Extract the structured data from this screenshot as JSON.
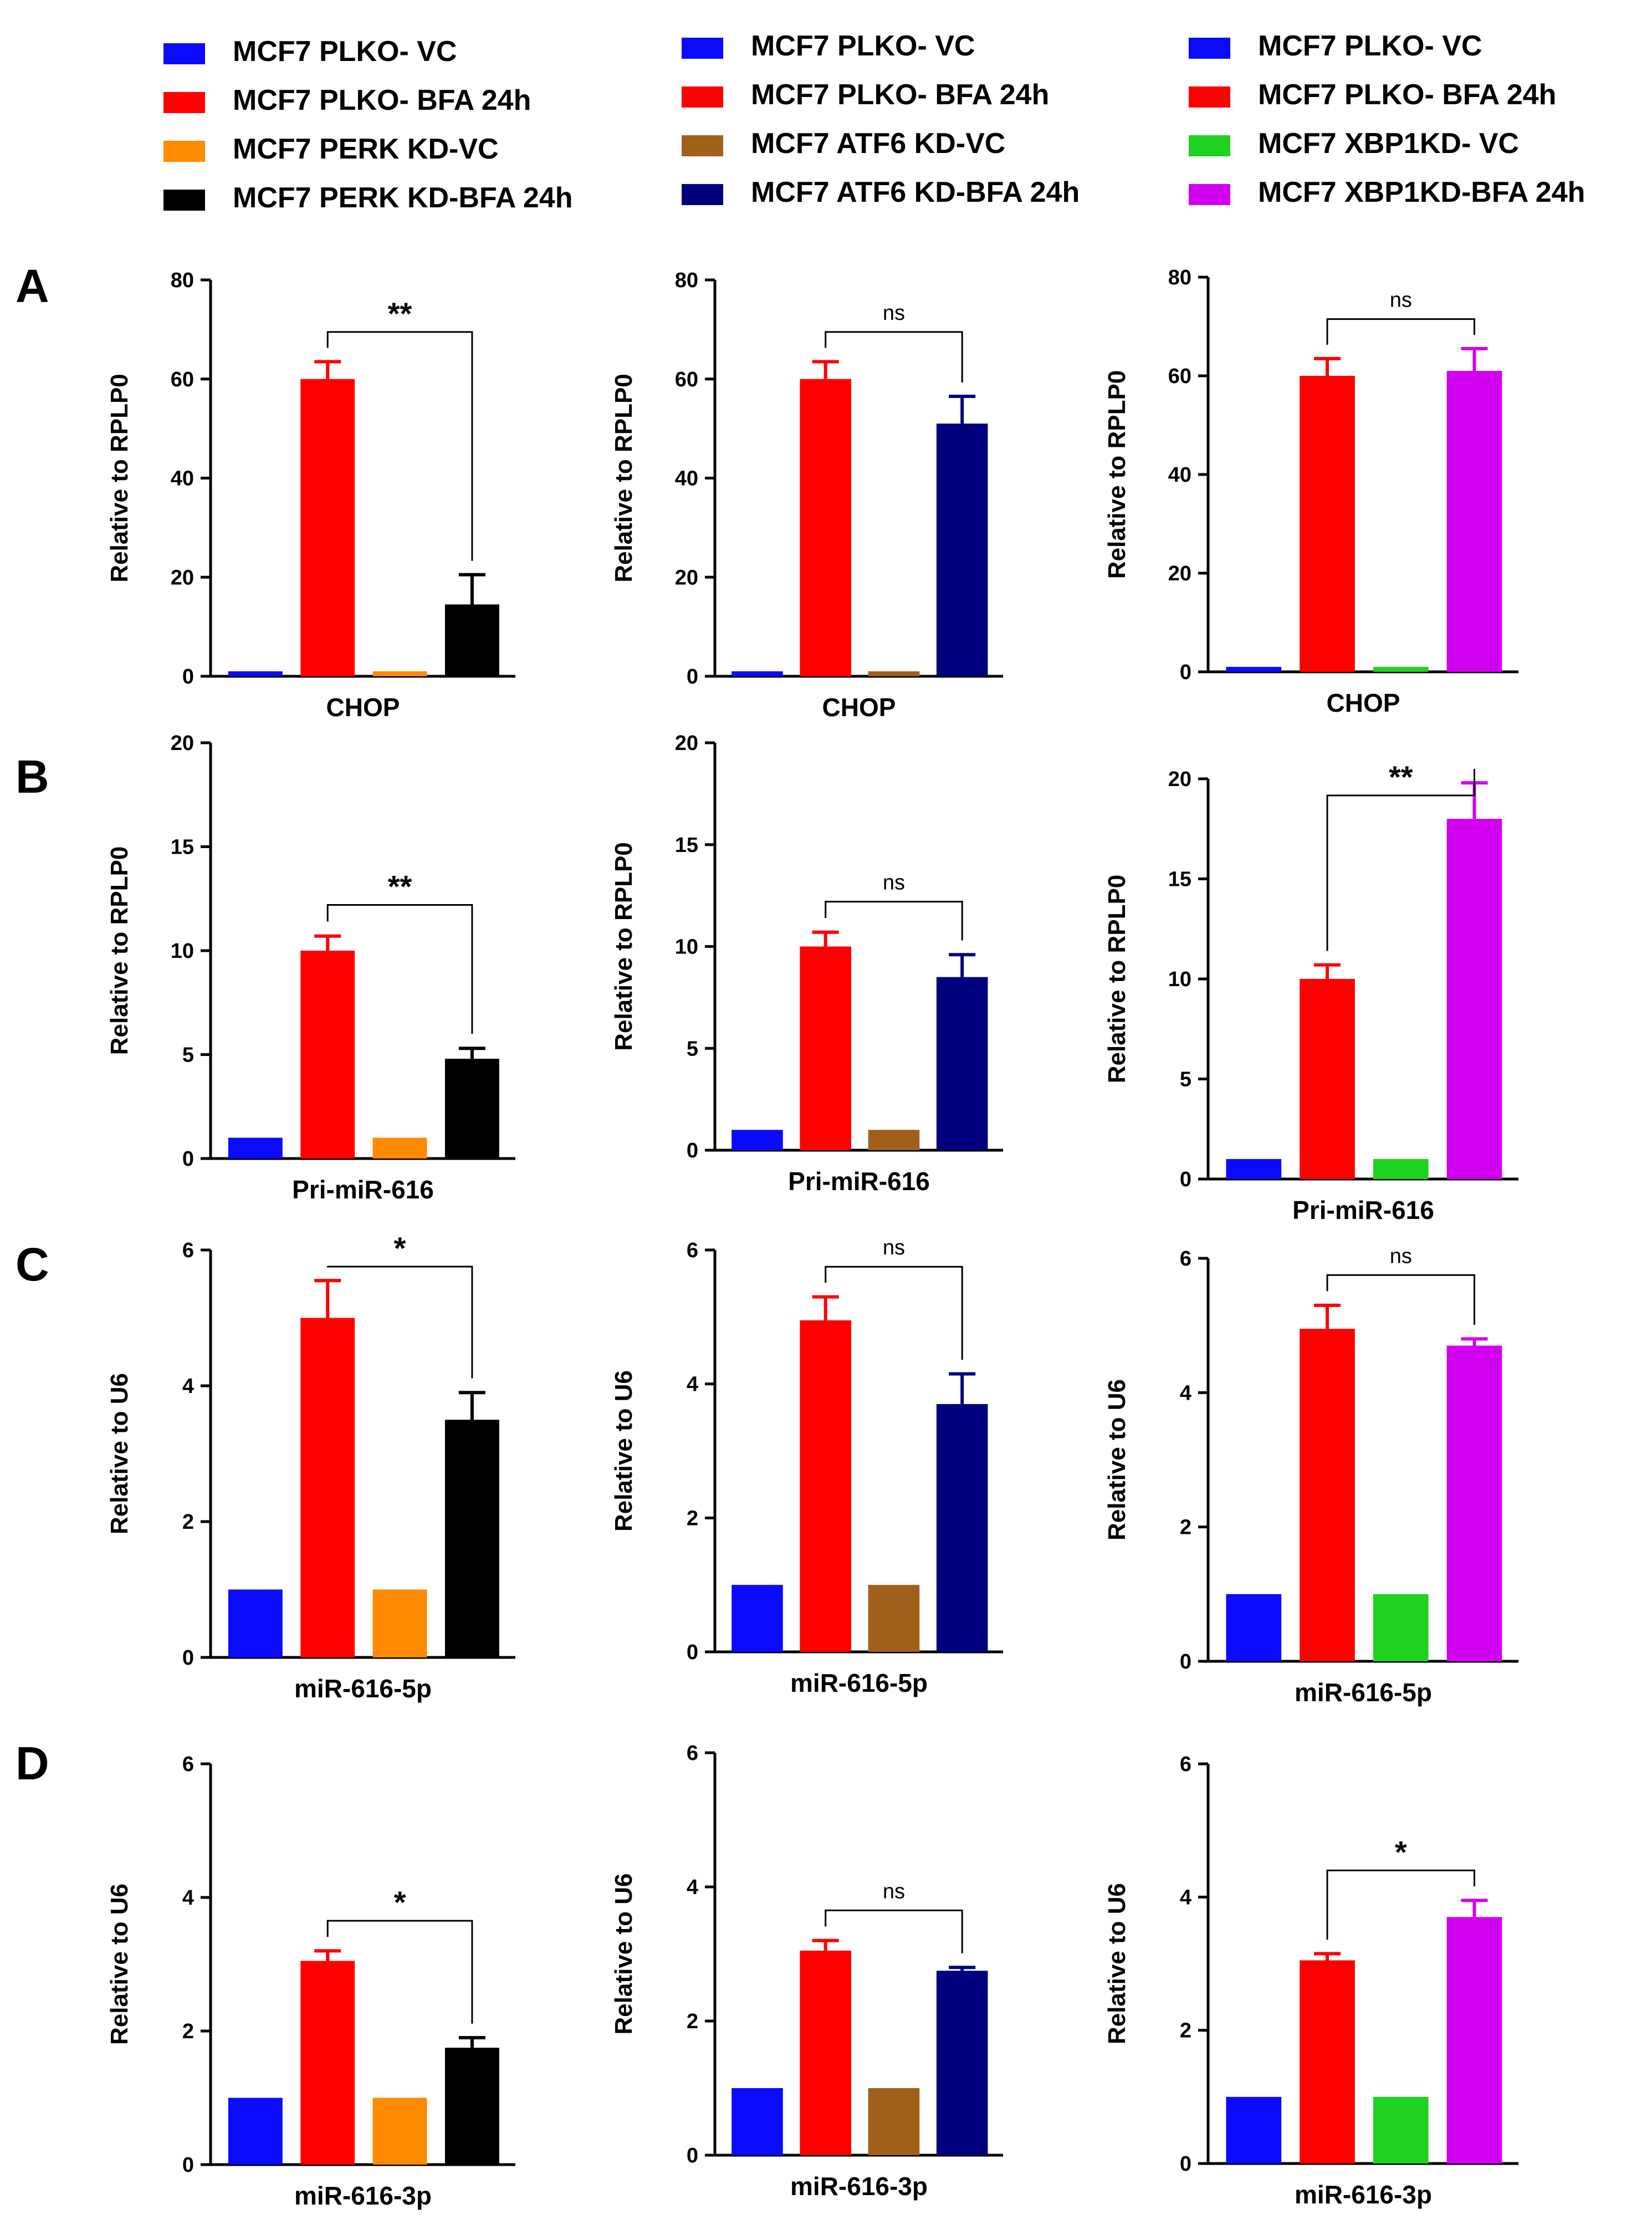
{
  "colors": {
    "PLKO_VC": "#0a0aff",
    "PLKO_BFA": "#ff0000",
    "PERK_VC": "#ff8a00",
    "PERK_BFA": "#000000",
    "ATF6_VC": "#a0601a",
    "ATF6_BFA": "#00007f",
    "XBP1_VC": "#1fd21f",
    "XBP1_BFA": "#d200f0"
  },
  "legend": [
    [
      {
        "label": "MCF7 PLKO- VC",
        "color": "#0a0aff"
      },
      {
        "label": "MCF7 PLKO- BFA 24h",
        "color": "#ff0000"
      },
      {
        "label": "MCF7 PERK KD-VC",
        "color": "#ff8a00"
      },
      {
        "label": "MCF7 PERK KD-BFA 24h",
        "color": "#000000"
      }
    ],
    [
      {
        "label": "MCF7 PLKO- VC",
        "color": "#0a0aff"
      },
      {
        "label": "MCF7 PLKO- BFA 24h",
        "color": "#ff0000"
      },
      {
        "label": "MCF7 ATF6 KD-VC",
        "color": "#a0601a"
      },
      {
        "label": "MCF7 ATF6 KD-BFA 24h",
        "color": "#00007f"
      }
    ],
    [
      {
        "label": "MCF7 PLKO- VC",
        "color": "#0a0aff"
      },
      {
        "label": "MCF7 PLKO- BFA 24h",
        "color": "#ff0000"
      },
      {
        "label": "MCF7 XBP1KD- VC",
        "color": "#1fd21f"
      },
      {
        "label": "MCF7 XBP1KD-BFA 24h",
        "color": "#d200f0"
      }
    ]
  ],
  "chart_data": [
    {
      "panel": "A",
      "type": "bar",
      "xlabel": "CHOP",
      "ylabel": "Relative to RPLP0",
      "ylim": [
        0,
        80
      ],
      "yticks": [
        0,
        20,
        40,
        60,
        80
      ],
      "values": [
        1,
        60,
        1,
        14.5
      ],
      "errors": [
        0,
        3.5,
        0,
        6
      ],
      "colors": [
        "#0a0aff",
        "#ff0000",
        "#ff8a00",
        "#000000"
      ],
      "significance": "**"
    },
    {
      "panel": "A2",
      "type": "bar",
      "xlabel": "CHOP",
      "ylabel": "Relative to RPLP0",
      "ylim": [
        0,
        80
      ],
      "yticks": [
        0,
        20,
        40,
        60,
        80
      ],
      "values": [
        1,
        60,
        1,
        51
      ],
      "errors": [
        0,
        3.5,
        0,
        5.5
      ],
      "colors": [
        "#0a0aff",
        "#ff0000",
        "#a0601a",
        "#00007f"
      ],
      "significance": "ns"
    },
    {
      "panel": "A3",
      "type": "bar",
      "xlabel": "CHOP",
      "ylabel": "Relative to RPLP0",
      "ylim": [
        0,
        80
      ],
      "yticks": [
        0,
        20,
        40,
        60,
        80
      ],
      "values": [
        1,
        60,
        1,
        61
      ],
      "errors": [
        0,
        3.5,
        0,
        4.5
      ],
      "colors": [
        "#0a0aff",
        "#ff0000",
        "#1fd21f",
        "#d200f0"
      ],
      "significance": "ns"
    },
    {
      "panel": "B",
      "type": "bar",
      "xlabel": "Pri-miR-616",
      "ylabel": "Relative to RPLP0",
      "ylim": [
        0,
        20
      ],
      "yticks": [
        0,
        5,
        10,
        15,
        20
      ],
      "values": [
        1,
        10,
        1,
        4.8
      ],
      "errors": [
        0,
        0.7,
        0,
        0.5
      ],
      "colors": [
        "#0a0aff",
        "#ff0000",
        "#ff8a00",
        "#000000"
      ],
      "significance": "**"
    },
    {
      "panel": "B2",
      "type": "bar",
      "xlabel": "Pri-miR-616",
      "ylabel": "Relative to RPLP0",
      "ylim": [
        0,
        20
      ],
      "yticks": [
        0,
        5,
        10,
        15,
        20
      ],
      "values": [
        1,
        10,
        1,
        8.5
      ],
      "errors": [
        0,
        0.7,
        0,
        1.1
      ],
      "colors": [
        "#0a0aff",
        "#ff0000",
        "#a0601a",
        "#00007f"
      ],
      "significance": "ns"
    },
    {
      "panel": "B3",
      "type": "bar",
      "xlabel": "Pri-miR-616",
      "ylabel": "Relative to RPLP0",
      "ylim": [
        0,
        20
      ],
      "yticks": [
        0,
        5,
        10,
        15,
        20
      ],
      "values": [
        1,
        10,
        1,
        18
      ],
      "errors": [
        0,
        0.7,
        0,
        1.8
      ],
      "colors": [
        "#0a0aff",
        "#ff0000",
        "#1fd21f",
        "#d200f0"
      ],
      "significance": "**"
    },
    {
      "panel": "C",
      "type": "bar",
      "xlabel": "miR-616-5p",
      "ylabel": "Relative to U6",
      "ylim": [
        0,
        6
      ],
      "yticks": [
        0,
        2,
        4,
        6
      ],
      "values": [
        1,
        5,
        1,
        3.5
      ],
      "errors": [
        0,
        0.55,
        0,
        0.4
      ],
      "colors": [
        "#0a0aff",
        "#ff0000",
        "#ff8a00",
        "#000000"
      ],
      "significance": "*"
    },
    {
      "panel": "C2",
      "type": "bar",
      "xlabel": "miR-616-5p",
      "ylabel": "Relative to U6",
      "ylim": [
        0,
        6
      ],
      "yticks": [
        0,
        2,
        4,
        6
      ],
      "values": [
        1,
        4.95,
        1,
        3.7
      ],
      "errors": [
        0,
        0.35,
        0,
        0.45
      ],
      "colors": [
        "#0a0aff",
        "#ff0000",
        "#a0601a",
        "#00007f"
      ],
      "significance": "ns"
    },
    {
      "panel": "C3",
      "type": "bar",
      "xlabel": "miR-616-5p",
      "ylabel": "Relative to U6",
      "ylim": [
        0,
        6
      ],
      "yticks": [
        0,
        2,
        4,
        6
      ],
      "values": [
        1,
        4.95,
        1,
        4.7
      ],
      "errors": [
        0,
        0.35,
        0,
        0.1
      ],
      "colors": [
        "#0a0aff",
        "#ff0000",
        "#1fd21f",
        "#d200f0"
      ],
      "significance": "ns"
    },
    {
      "panel": "D",
      "type": "bar",
      "xlabel": "miR-616-3p",
      "ylabel": "Relative to U6",
      "ylim": [
        0,
        6
      ],
      "yticks": [
        0,
        2,
        4,
        6
      ],
      "values": [
        1,
        3.05,
        1,
        1.75
      ],
      "errors": [
        0,
        0.15,
        0,
        0.15
      ],
      "colors": [
        "#0a0aff",
        "#ff0000",
        "#ff8a00",
        "#000000"
      ],
      "significance": "*"
    },
    {
      "panel": "D2",
      "type": "bar",
      "xlabel": "miR-616-3p",
      "ylabel": "Relative to U6",
      "ylim": [
        0,
        6
      ],
      "yticks": [
        0,
        2,
        4,
        6
      ],
      "values": [
        1,
        3.05,
        1,
        2.75
      ],
      "errors": [
        0,
        0.15,
        0,
        0.05
      ],
      "colors": [
        "#0a0aff",
        "#ff0000",
        "#a0601a",
        "#00007f"
      ],
      "significance": "ns"
    },
    {
      "panel": "D3",
      "type": "bar",
      "xlabel": "miR-616-3p",
      "ylabel": "Relative to U6",
      "ylim": [
        0,
        6
      ],
      "yticks": [
        0,
        2,
        4,
        6
      ],
      "values": [
        1,
        3.05,
        1,
        3.7
      ],
      "errors": [
        0,
        0.1,
        0,
        0.25
      ],
      "colors": [
        "#0a0aff",
        "#ff0000",
        "#1fd21f",
        "#d200f0"
      ],
      "significance": "*"
    }
  ],
  "row_labels": [
    "A",
    "B",
    "C",
    "D"
  ]
}
